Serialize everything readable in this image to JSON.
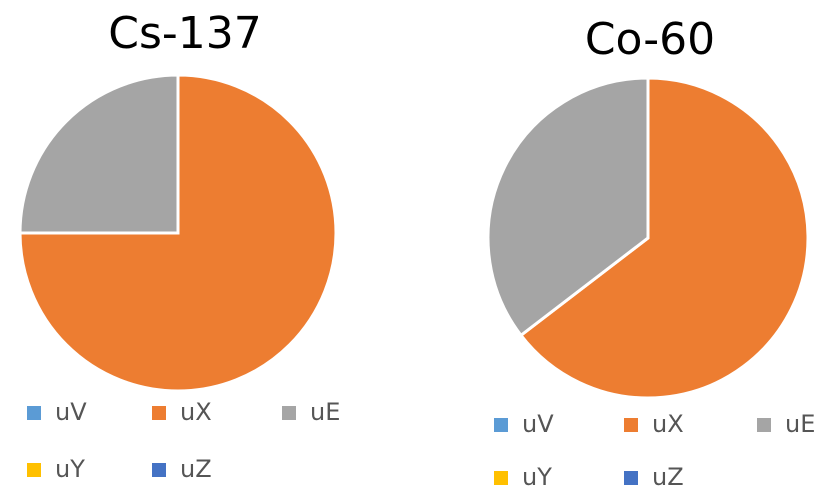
{
  "chart_data": [
    {
      "type": "pie",
      "title": "Cs-137",
      "categories": [
        "uV",
        "uX",
        "uE",
        "uY",
        "uZ"
      ],
      "values": [
        0,
        75,
        25,
        0,
        0
      ],
      "colors": [
        "#5b9bd5",
        "#ed7d31",
        "#a5a5a5",
        "#ffc000",
        "#4472c4"
      ]
    },
    {
      "type": "pie",
      "title": "Co-60",
      "categories": [
        "uV",
        "uX",
        "uE",
        "uY",
        "uZ"
      ],
      "values": [
        0,
        64.6,
        35.4,
        0,
        0
      ],
      "colors": [
        "#5b9bd5",
        "#ed7d31",
        "#a5a5a5",
        "#ffc000",
        "#4472c4"
      ]
    }
  ]
}
